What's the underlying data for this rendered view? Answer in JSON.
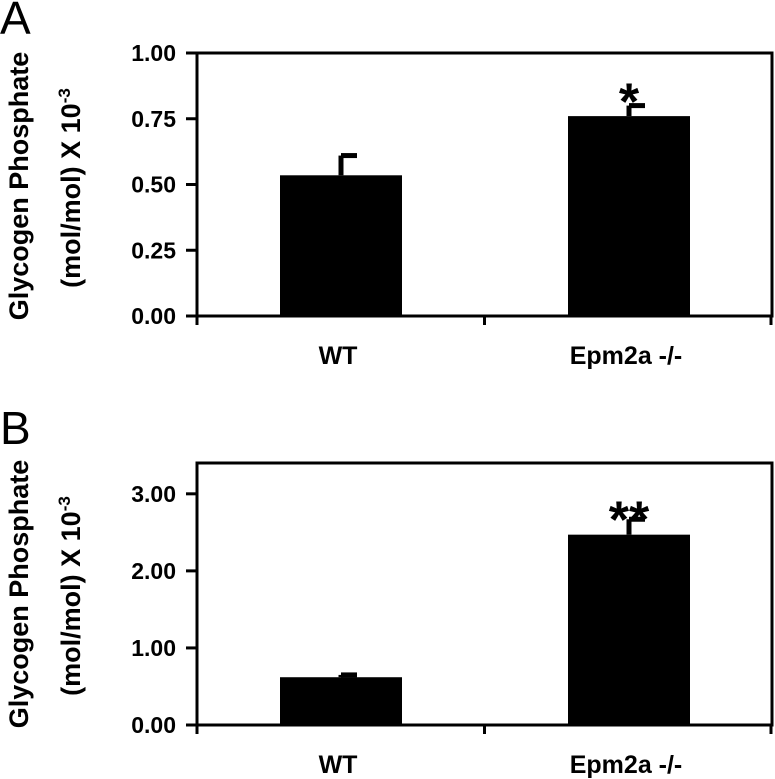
{
  "colors": {
    "bar": "#000000",
    "axis": "#000000",
    "background": "#ffffff"
  },
  "chart_data": [
    {
      "type": "bar",
      "panel": "A",
      "categories": [
        "WT",
        "Epm2a -/-"
      ],
      "values": [
        0.535,
        0.76
      ],
      "errors": [
        0.075,
        0.04
      ],
      "significance": [
        "",
        "*"
      ],
      "ylabel_line1": "Glycogen Phosphate",
      "ylabel_line2": "(mol/mol) X 10",
      "ylabel_exponent": "-3",
      "ylim": [
        0,
        1.0
      ],
      "yticks": [
        0,
        0.25,
        0.5,
        0.75,
        1.0
      ],
      "ytick_labels": [
        "0.00",
        "0.25",
        "0.50",
        "0.75",
        "1.00"
      ],
      "grid": false,
      "legend": "none"
    },
    {
      "type": "bar",
      "panel": "B",
      "categories": [
        "WT",
        "Epm2a -/-"
      ],
      "values": [
        0.62,
        2.47
      ],
      "errors": [
        0.03,
        0.2
      ],
      "significance": [
        "",
        "**"
      ],
      "ylabel_line1": "Glycogen Phosphate",
      "ylabel_line2": "(mol/mol) X 10",
      "ylabel_exponent": "-3",
      "ylim": [
        0,
        3.4
      ],
      "yticks": [
        0,
        1,
        2,
        3
      ],
      "ytick_labels": [
        "0.00",
        "1.00",
        "2.00",
        "3.00"
      ],
      "grid": false,
      "legend": "none"
    }
  ]
}
